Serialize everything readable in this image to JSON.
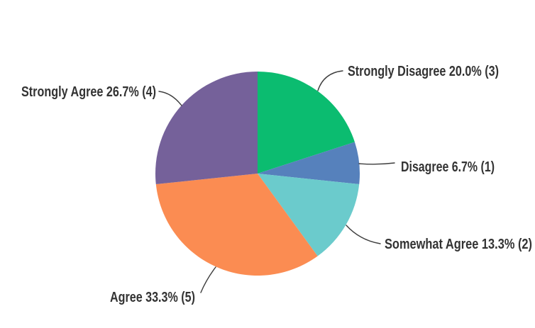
{
  "page": {
    "background_color": "#ffffff"
  },
  "chart_data": {
    "type": "pie",
    "categories": [
      "Strongly Disagree",
      "Disagree",
      "Somewhat Agree",
      "Agree",
      "Strongly Agree"
    ],
    "values": [
      3,
      1,
      2,
      5,
      4
    ],
    "percents": [
      20.0,
      6.7,
      13.3,
      33.3,
      26.7
    ],
    "total_responses": 15,
    "callout_labels": [
      "Strongly Disagree 20.0% (3)",
      "Disagree 6.7% (1)",
      "Somewhat Agree 13.3% (2)",
      "Agree 33.3% (5)",
      "Strongly Agree 26.7% (4)"
    ],
    "slugs": [
      "strongly-disagree",
      "disagree",
      "somewhat-agree",
      "agree",
      "strongly-agree"
    ],
    "colors": [
      "#0bbc70",
      "#5681bc",
      "#6bcbcc",
      "#fb8c52",
      "#75619a"
    ],
    "text_color": "#333333",
    "leader_line_color": "#3d3d3d",
    "start_angle_deg": 0,
    "direction": "clockwise",
    "legend_position": "none",
    "label_style": "outside-callout"
  }
}
